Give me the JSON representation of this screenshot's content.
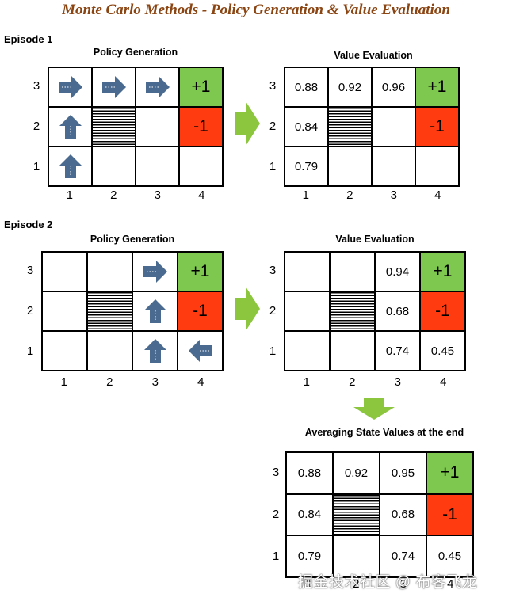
{
  "title": "Monte Carlo Methods - Policy Generation & Value Evaluation",
  "episode1": {
    "label": "Episode 1",
    "policy_title": "Policy Generation",
    "value_title": "Value Evaluation",
    "row_labels": [
      "3",
      "2",
      "1"
    ],
    "col_labels": [
      "1",
      "2",
      "3",
      "4"
    ],
    "policy": [
      [
        "right",
        "right",
        "right",
        "+1"
      ],
      [
        "up",
        "wall",
        "",
        "-1"
      ],
      [
        "up",
        "",
        "",
        ""
      ]
    ],
    "values": [
      [
        "0.88",
        "0.92",
        "0.96",
        "+1"
      ],
      [
        "0.84",
        "wall",
        "",
        "-1"
      ],
      [
        "0.79",
        "",
        "",
        ""
      ]
    ]
  },
  "episode2": {
    "label": "Episode 2",
    "policy_title": "Policy Generation",
    "value_title": "Value Evaluation",
    "row_labels": [
      "3",
      "2",
      "1"
    ],
    "col_labels": [
      "1",
      "2",
      "3",
      "4"
    ],
    "policy": [
      [
        "",
        "",
        "right",
        "+1"
      ],
      [
        "",
        "wall",
        "up",
        "-1"
      ],
      [
        "",
        "",
        "up",
        "left"
      ]
    ],
    "values": [
      [
        "",
        "",
        "0.94",
        "+1"
      ],
      [
        "",
        "wall",
        "0.68",
        "-1"
      ],
      [
        "",
        "",
        "0.74",
        "0.45"
      ]
    ]
  },
  "average": {
    "title": "Averaging State Values at the end",
    "row_labels": [
      "3",
      "2",
      "1"
    ],
    "col_labels": [
      "1",
      "2",
      "3",
      "4"
    ],
    "values": [
      [
        "0.88",
        "0.92",
        "0.95",
        "+1"
      ],
      [
        "0.84",
        "wall",
        "0.68",
        "-1"
      ],
      [
        "0.79",
        "",
        "0.74",
        "0.45"
      ]
    ]
  },
  "colors": {
    "title": "#8b4513",
    "goal": "#7ec850",
    "pit": "#ff3b0f",
    "policy_arrow": "#4a6a8f",
    "flow_arrow": "#8cc63f"
  },
  "watermark": "掘金技术社区 @ 布客飞龙"
}
